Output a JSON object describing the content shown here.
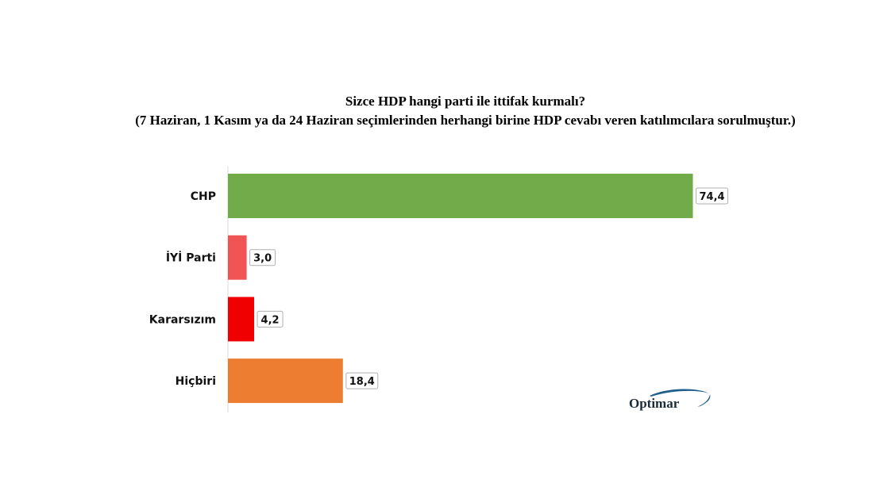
{
  "chart_data": {
    "type": "bar",
    "orientation": "horizontal",
    "title": "Sizce HDP hangi parti ile ittifak kurmalı?",
    "subtitle": "(7 Haziran, 1 Kasım ya da 24 Haziran seçimlerinden herhangi birine HDP cevabı veren katılımcılara sorulmuştur.)",
    "categories": [
      "CHP",
      "İYİ Parti",
      "Kararsızım",
      "Hiçbiri"
    ],
    "values": [
      74.4,
      3.0,
      4.2,
      18.4
    ],
    "value_labels": [
      "74,4",
      "3,0",
      "4,2",
      "18,4"
    ],
    "colors": [
      "#72ac4a",
      "#f05454",
      "#f00000",
      "#ed7d31"
    ],
    "xlim": [
      0,
      100
    ],
    "grid": false,
    "legend": "none"
  },
  "logo": {
    "text": "Optimar",
    "color": "#1c2a3a",
    "accent": "#1f5f8b"
  }
}
